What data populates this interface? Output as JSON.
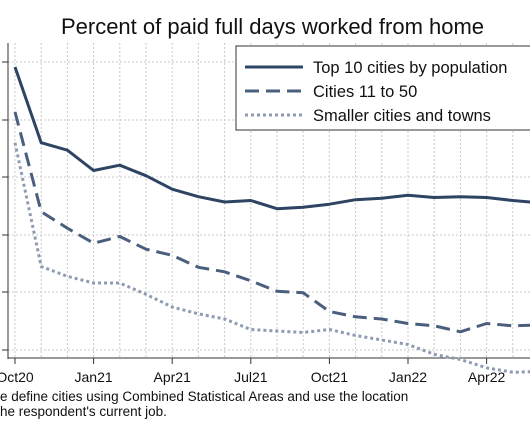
{
  "chart_data": {
    "type": "line",
    "title": "Percent of paid full days worked from home",
    "xlabel": "",
    "ylabel": "",
    "x_ticks": [
      "Oct20",
      "Jan21",
      "Apr21",
      "Jul21",
      "Oct21",
      "Jan22",
      "Apr22"
    ],
    "x": [
      "2020-10",
      "2020-11",
      "2020-12",
      "2021-01",
      "2021-02",
      "2021-03",
      "2021-04",
      "2021-05",
      "2021-06",
      "2021-07",
      "2021-08",
      "2021-09",
      "2021-10",
      "2021-11",
      "2021-12",
      "2022-01",
      "2022-02",
      "2022-03",
      "2022-04",
      "2022-05",
      "2022-06"
    ],
    "ylim": [
      0.65,
      4.85
    ],
    "grid": true,
    "legend_position": "top-right",
    "series": [
      {
        "name": "Top 10 cities by population",
        "color": "#2e4463",
        "dash": "solid",
        "values": [
          4.53,
          3.52,
          3.42,
          3.15,
          3.22,
          3.08,
          2.9,
          2.8,
          2.73,
          2.75,
          2.64,
          2.66,
          2.7,
          2.76,
          2.78,
          2.82,
          2.79,
          2.8,
          2.79,
          2.75,
          2.72
        ]
      },
      {
        "name": "Cities 11 to 50",
        "color": "#4a5f7d",
        "dash": "dashed",
        "values": [
          3.93,
          2.6,
          2.38,
          2.18,
          2.27,
          2.1,
          2.02,
          1.86,
          1.8,
          1.68,
          1.54,
          1.52,
          1.27,
          1.2,
          1.17,
          1.11,
          1.08,
          1.0,
          1.11,
          1.08,
          1.09
        ]
      },
      {
        "name": "Smaller cities and towns",
        "color": "#8e9bb0",
        "dash": "dotted",
        "values": [
          3.52,
          1.87,
          1.74,
          1.65,
          1.65,
          1.5,
          1.33,
          1.24,
          1.17,
          1.03,
          1.01,
          0.99,
          1.03,
          0.95,
          0.89,
          0.83,
          0.7,
          0.63,
          0.52,
          0.46,
          0.47
        ]
      }
    ]
  },
  "footnote": {
    "line1": "e define cities using Combined Statistical Areas and use the location",
    "line2": "he respondent's current job."
  }
}
